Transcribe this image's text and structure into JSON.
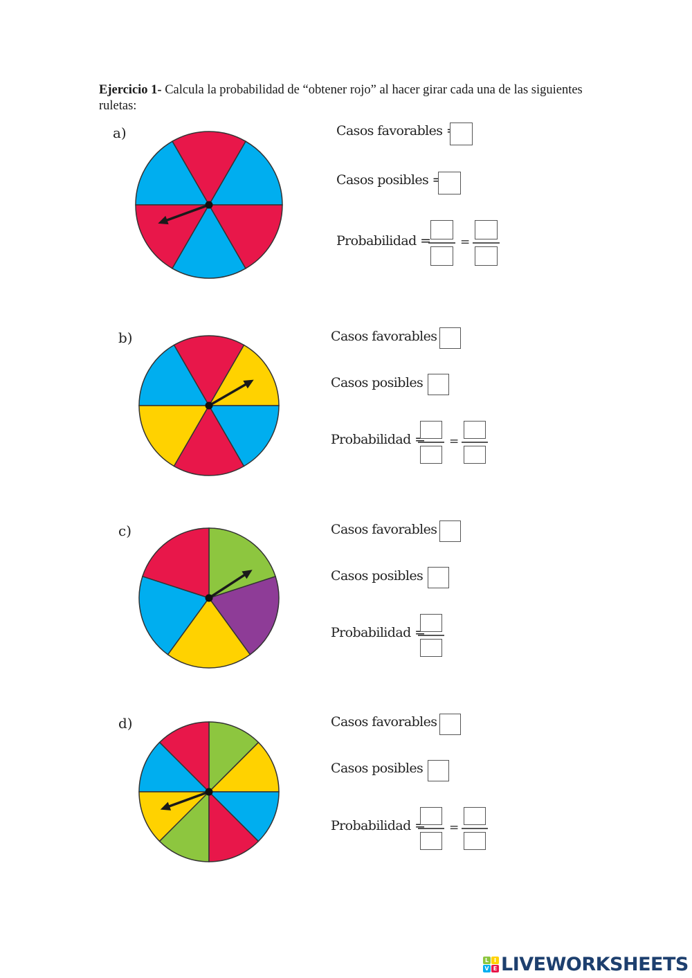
{
  "heading": {
    "bold": "Ejercicio 1-",
    "text": " Calcula la probabilidad de “obtener rojo” al hacer girar cada una de las siguientes ruletas:"
  },
  "colors": {
    "red": "#E8174A",
    "blue": "#00AEEF",
    "yellow": "#FFD200",
    "green": "#8DC63F",
    "purple": "#8E3C97",
    "outline": "#333333",
    "box_border": "#555555",
    "logo_text": "#1D3F6E"
  },
  "exercises": [
    {
      "label": "a)",
      "sectors": [
        "blue",
        "red",
        "blue",
        "red",
        "blue",
        "red"
      ],
      "sector_start_angles_deg": [
        0,
        60,
        120,
        180,
        240,
        300
      ],
      "arrow_angle_deg": 200,
      "casos_favorables_label": "Casos favorables =",
      "casos_posibles_label": "Casos posibles =",
      "probabilidad_label": "Probabilidad =",
      "equals": "=",
      "fractions": 2
    },
    {
      "label": "b)",
      "sectors": [
        "yellow",
        "red",
        "blue",
        "yellow",
        "red",
        "blue"
      ],
      "sector_start_angles_deg": [
        0,
        60,
        120,
        180,
        240,
        300
      ],
      "arrow_angle_deg": 30,
      "casos_favorables_label": "Casos favorables =",
      "casos_posibles_label": "Casos posibles =",
      "probabilidad_label": "Probabilidad =",
      "equals": "=",
      "fractions": 2
    },
    {
      "label": "c)",
      "sectors": [
        "purple",
        "green",
        "red",
        "blue",
        "yellow"
      ],
      "sector_start_angles_deg": [
        -54,
        18,
        90,
        162,
        234
      ],
      "arrow_angle_deg": 33,
      "casos_favorables_label": "Casos favorables =",
      "casos_posibles_label": "Casos posibles =",
      "probabilidad_label": "Probabilidad =",
      "fractions": 1
    },
    {
      "label": "d)",
      "sectors": [
        "yellow",
        "green",
        "red",
        "blue",
        "yellow",
        "green",
        "red",
        "blue"
      ],
      "sector_start_angles_deg": [
        0,
        45,
        90,
        135,
        180,
        225,
        270,
        315
      ],
      "arrow_angle_deg": 200,
      "casos_favorables_label": "Casos favorables =",
      "casos_posibles_label": "Casos posibles =",
      "probabilidad_label": "Probabilidad =",
      "equals": "=",
      "fractions": 2
    }
  ],
  "logo": {
    "grid": [
      "L",
      "I",
      "V",
      "E"
    ],
    "grid_colors": [
      "#8DC63F",
      "#FFD200",
      "#00AEEF",
      "#E8174A"
    ],
    "text": "LIVEWORKSHEETS"
  }
}
